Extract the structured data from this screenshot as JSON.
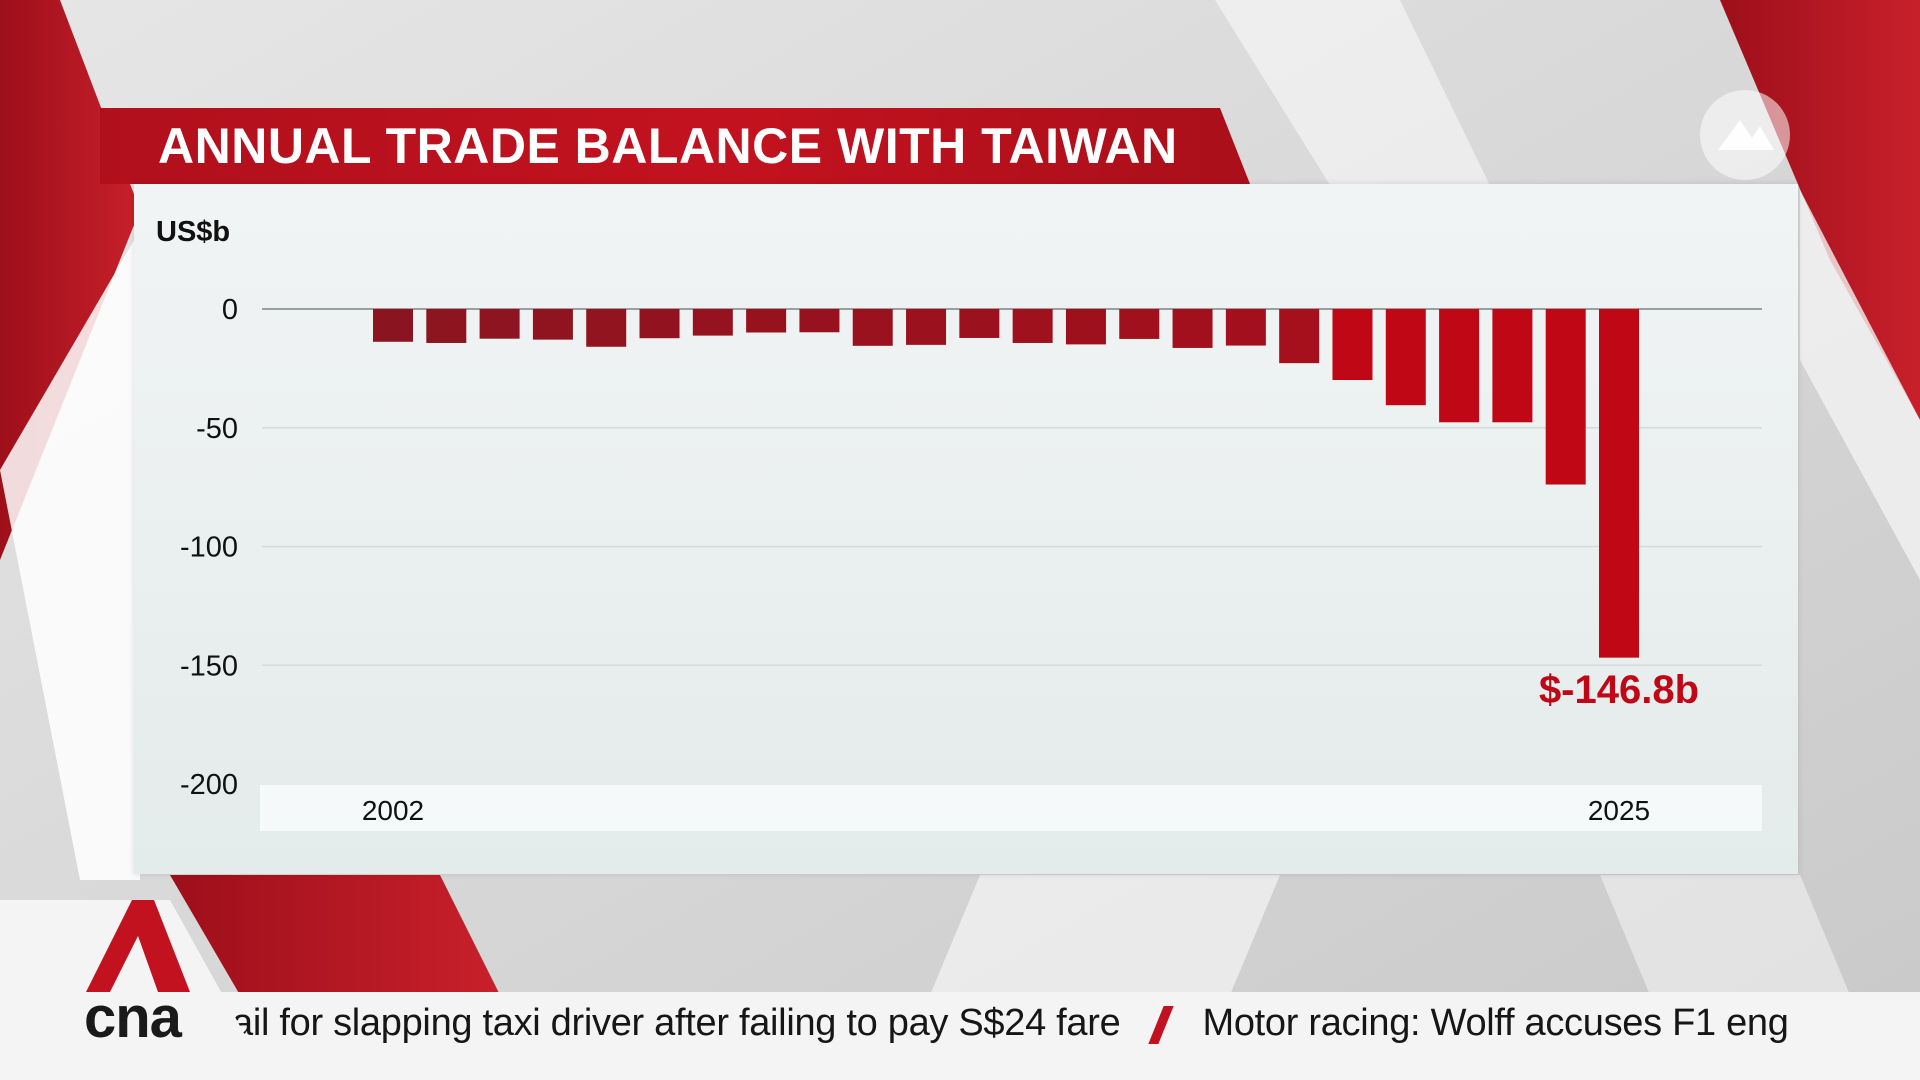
{
  "title": "ANNUAL TRADE BALANCE WITH TAIWAN",
  "colors": {
    "accent": "#c3121f",
    "bar_dark": "#8e1520",
    "bar_bright": "#c00715",
    "panel": "#eef2f2"
  },
  "chart_data": {
    "type": "bar",
    "ylabel": "US$b",
    "ylim": [
      -200,
      0
    ],
    "y_ticks": [
      0,
      -50,
      -100,
      -150,
      -200
    ],
    "y_tick_labels": [
      "0",
      "-50",
      "-100",
      "-150",
      "-200"
    ],
    "grid": true,
    "categories": [
      2002,
      2003,
      2004,
      2005,
      2006,
      2007,
      2008,
      2009,
      2010,
      2011,
      2012,
      2013,
      2014,
      2015,
      2016,
      2017,
      2018,
      2019,
      2020,
      2021,
      2022,
      2023,
      2024,
      2025
    ],
    "x_tick_labels": [
      {
        "year": 2002,
        "label": "2002"
      },
      {
        "year": 2025,
        "label": "2025"
      }
    ],
    "values": [
      -13.8,
      -14.3,
      -12.5,
      -12.9,
      -15.9,
      -12.3,
      -11.2,
      -9.9,
      -9.8,
      -15.5,
      -15.1,
      -12.2,
      -14.3,
      -14.9,
      -12.6,
      -16.4,
      -15.4,
      -22.8,
      -29.9,
      -40.5,
      -47.7,
      -47.7,
      -73.9,
      -146.8
    ],
    "annotations": [
      {
        "category": 2025,
        "text": "$-146.8b"
      }
    ]
  },
  "ticker": {
    "left_text": "ail for slapping taxi driver after failing to pay S$24 fare",
    "right_text": "Motor racing: Wolff accuses F1 eng"
  },
  "brand": {
    "logo_text": "cna",
    "corner_icon": "cna-mark-icon"
  }
}
